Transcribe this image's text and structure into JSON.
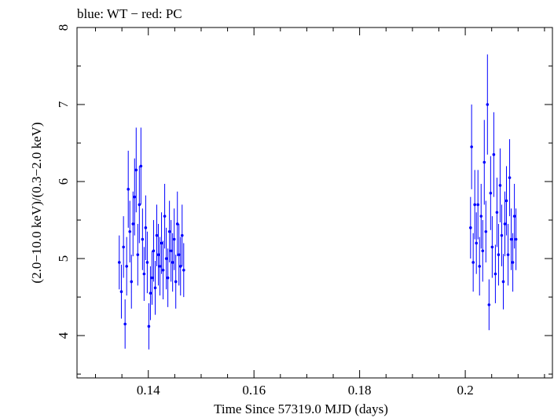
{
  "chart_data": {
    "type": "scatter",
    "title": "blue: WT − red: PC",
    "xlabel": "Time Since 57319.0 MJD (days)",
    "ylabel": "(2.0−10.0 keV)/(0.3−2.0 keV)",
    "xlim": [
      0.1265,
      0.2165
    ],
    "ylim": [
      3.45,
      8.0
    ],
    "x_ticks": [
      0.14,
      0.16,
      0.18,
      0.2
    ],
    "x_tick_labels": [
      "0.14",
      "0.16",
      "0.18",
      "0.2"
    ],
    "y_ticks": [
      4,
      5,
      6,
      7,
      8
    ],
    "y_tick_labels": [
      "4",
      "5",
      "6",
      "7",
      "8"
    ],
    "grid": false,
    "series": [
      {
        "name": "WT",
        "color": "#0000ff",
        "points": [
          {
            "x": 0.1345,
            "y": 4.95,
            "err": 0.35
          },
          {
            "x": 0.1349,
            "y": 4.57,
            "err": 0.35
          },
          {
            "x": 0.1353,
            "y": 5.15,
            "err": 0.4
          },
          {
            "x": 0.1356,
            "y": 4.15,
            "err": 0.32
          },
          {
            "x": 0.1359,
            "y": 4.9,
            "err": 0.38
          },
          {
            "x": 0.1362,
            "y": 5.9,
            "err": 0.5
          },
          {
            "x": 0.1365,
            "y": 5.35,
            "err": 0.4
          },
          {
            "x": 0.1368,
            "y": 4.7,
            "err": 0.35
          },
          {
            "x": 0.1371,
            "y": 5.45,
            "err": 0.42
          },
          {
            "x": 0.1374,
            "y": 5.8,
            "err": 0.5
          },
          {
            "x": 0.1377,
            "y": 6.15,
            "err": 0.55
          },
          {
            "x": 0.138,
            "y": 5.05,
            "err": 0.4
          },
          {
            "x": 0.1383,
            "y": 5.7,
            "err": 0.5
          },
          {
            "x": 0.1386,
            "y": 6.2,
            "err": 0.5
          },
          {
            "x": 0.1389,
            "y": 5.25,
            "err": 0.4
          },
          {
            "x": 0.1392,
            "y": 4.8,
            "err": 0.35
          },
          {
            "x": 0.1395,
            "y": 5.4,
            "err": 0.42
          },
          {
            "x": 0.1398,
            "y": 4.95,
            "err": 0.4
          },
          {
            "x": 0.1401,
            "y": 4.12,
            "err": 0.3
          },
          {
            "x": 0.1404,
            "y": 4.55,
            "err": 0.35
          },
          {
            "x": 0.1407,
            "y": 4.75,
            "err": 0.35
          },
          {
            "x": 0.141,
            "y": 5.1,
            "err": 0.4
          },
          {
            "x": 0.1413,
            "y": 4.62,
            "err": 0.35
          },
          {
            "x": 0.1416,
            "y": 5.3,
            "err": 0.4
          },
          {
            "x": 0.1419,
            "y": 5.05,
            "err": 0.4
          },
          {
            "x": 0.1422,
            "y": 4.9,
            "err": 0.38
          },
          {
            "x": 0.1425,
            "y": 5.2,
            "err": 0.4
          },
          {
            "x": 0.1428,
            "y": 4.85,
            "err": 0.38
          },
          {
            "x": 0.1431,
            "y": 5.55,
            "err": 0.42
          },
          {
            "x": 0.1434,
            "y": 5.0,
            "err": 0.4
          },
          {
            "x": 0.1437,
            "y": 4.75,
            "err": 0.38
          },
          {
            "x": 0.144,
            "y": 5.35,
            "err": 0.4
          },
          {
            "x": 0.1443,
            "y": 5.1,
            "err": 0.4
          },
          {
            "x": 0.1446,
            "y": 4.95,
            "err": 0.38
          },
          {
            "x": 0.1449,
            "y": 5.25,
            "err": 0.4
          },
          {
            "x": 0.1452,
            "y": 4.7,
            "err": 0.35
          },
          {
            "x": 0.1455,
            "y": 5.45,
            "err": 0.42
          },
          {
            "x": 0.1458,
            "y": 5.05,
            "err": 0.4
          },
          {
            "x": 0.1461,
            "y": 4.9,
            "err": 0.38
          },
          {
            "x": 0.1464,
            "y": 5.3,
            "err": 0.4
          },
          {
            "x": 0.1467,
            "y": 4.85,
            "err": 0.35
          },
          {
            "x": 0.201,
            "y": 5.4,
            "err": 0.4
          },
          {
            "x": 0.2012,
            "y": 6.45,
            "err": 0.55
          },
          {
            "x": 0.2015,
            "y": 4.95,
            "err": 0.38
          },
          {
            "x": 0.2018,
            "y": 5.7,
            "err": 0.45
          },
          {
            "x": 0.2021,
            "y": 5.2,
            "err": 0.4
          },
          {
            "x": 0.2024,
            "y": 5.7,
            "err": 0.45
          },
          {
            "x": 0.2027,
            "y": 4.9,
            "err": 0.38
          },
          {
            "x": 0.203,
            "y": 5.55,
            "err": 0.42
          },
          {
            "x": 0.2033,
            "y": 5.1,
            "err": 0.4
          },
          {
            "x": 0.2036,
            "y": 6.25,
            "err": 0.55
          },
          {
            "x": 0.2039,
            "y": 5.35,
            "err": 0.4
          },
          {
            "x": 0.2042,
            "y": 7.0,
            "err": 0.65
          },
          {
            "x": 0.2045,
            "y": 4.4,
            "err": 0.33
          },
          {
            "x": 0.2048,
            "y": 5.85,
            "err": 0.48
          },
          {
            "x": 0.2051,
            "y": 5.15,
            "err": 0.4
          },
          {
            "x": 0.2054,
            "y": 6.35,
            "err": 0.55
          },
          {
            "x": 0.2057,
            "y": 4.8,
            "err": 0.38
          },
          {
            "x": 0.206,
            "y": 5.6,
            "err": 0.45
          },
          {
            "x": 0.2063,
            "y": 5.05,
            "err": 0.4
          },
          {
            "x": 0.2066,
            "y": 5.95,
            "err": 0.48
          },
          {
            "x": 0.2069,
            "y": 5.3,
            "err": 0.4
          },
          {
            "x": 0.2072,
            "y": 4.7,
            "err": 0.36
          },
          {
            "x": 0.2075,
            "y": 5.45,
            "err": 0.42
          },
          {
            "x": 0.2078,
            "y": 5.75,
            "err": 0.45
          },
          {
            "x": 0.2081,
            "y": 5.05,
            "err": 0.4
          },
          {
            "x": 0.2084,
            "y": 6.05,
            "err": 0.5
          },
          {
            "x": 0.2087,
            "y": 5.25,
            "err": 0.4
          },
          {
            "x": 0.209,
            "y": 4.95,
            "err": 0.38
          },
          {
            "x": 0.2093,
            "y": 5.55,
            "err": 0.42
          },
          {
            "x": 0.2096,
            "y": 5.25,
            "err": 0.4
          }
        ]
      }
    ]
  }
}
